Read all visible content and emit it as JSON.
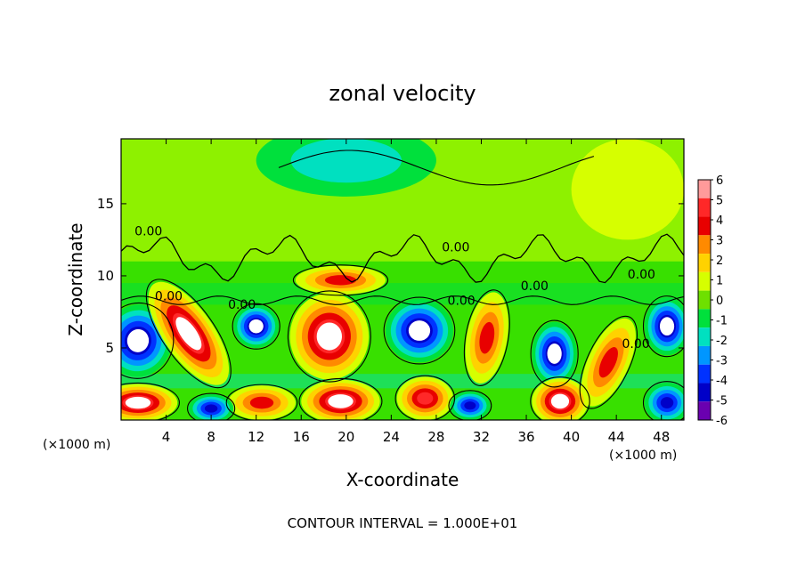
{
  "chart_data": {
    "type": "heatmap",
    "title": "zonal velocity",
    "xlabel": "X-coordinate",
    "ylabel": "Z-coordinate",
    "x_unit_left": "(×1000 m)",
    "x_unit_right": "(×1000 m)",
    "footer": "CONTOUR INTERVAL = 1.000E+01",
    "x_ticks": [
      4,
      8,
      12,
      16,
      20,
      24,
      28,
      32,
      36,
      40,
      44,
      48
    ],
    "y_ticks": [
      5,
      10,
      15
    ],
    "xlim": [
      0,
      50
    ],
    "ylim": [
      0,
      19.5
    ],
    "contour_labels": [
      {
        "text": "0.00",
        "x": 1.2,
        "y": 12.8
      },
      {
        "text": "0.00",
        "x": 3.0,
        "y": 8.3
      },
      {
        "text": "0.00",
        "x": 9.5,
        "y": 7.7
      },
      {
        "text": "0.00",
        "x": 28.5,
        "y": 11.7
      },
      {
        "text": "0.00",
        "x": 29.0,
        "y": 8.0
      },
      {
        "text": "0.00",
        "x": 35.5,
        "y": 9.0
      },
      {
        "text": "0.00",
        "x": 45.0,
        "y": 9.8
      },
      {
        "text": "0.00",
        "x": 44.5,
        "y": 5.0
      }
    ],
    "colorbar": {
      "ticks": [
        6,
        5,
        4,
        3,
        2,
        1,
        0,
        -1,
        -2,
        -3,
        -4,
        -5,
        -6
      ],
      "colors": [
        "#ff9a9a",
        "#ff2828",
        "#e80000",
        "#ff8a00",
        "#ffd200",
        "#d6ff00",
        "#6ee000",
        "#00e03c",
        "#00e0c0",
        "#0096ff",
        "#0032ff",
        "#0000c8",
        "#6a00b0"
      ]
    },
    "blobs": [
      {
        "x": 1.5,
        "y": 5.5,
        "v": -6,
        "rx": 3.0,
        "ry": 2.5,
        "rot": 10
      },
      {
        "x": 6.0,
        "y": 6.0,
        "v": 6,
        "rx": 2.2,
        "ry": 4.2,
        "rot": -35
      },
      {
        "x": 12.0,
        "y": 6.5,
        "v": -6,
        "rx": 2.0,
        "ry": 1.5,
        "rot": 0
      },
      {
        "x": 18.5,
        "y": 5.8,
        "v": 6,
        "rx": 3.5,
        "ry": 3.0,
        "rot": 0
      },
      {
        "x": 19.5,
        "y": 9.7,
        "v": 4,
        "rx": 4.0,
        "ry": 1.0,
        "rot": 0
      },
      {
        "x": 26.5,
        "y": 6.2,
        "v": -6,
        "rx": 3.0,
        "ry": 2.2,
        "rot": 0
      },
      {
        "x": 32.5,
        "y": 5.7,
        "v": 4,
        "rx": 1.8,
        "ry": 3.2,
        "rot": 10
      },
      {
        "x": 38.5,
        "y": 4.6,
        "v": -6,
        "rx": 2.0,
        "ry": 2.2,
        "rot": 0
      },
      {
        "x": 43.3,
        "y": 4.0,
        "v": 4,
        "rx": 1.8,
        "ry": 3.3,
        "rot": 25
      },
      {
        "x": 48.5,
        "y": 6.5,
        "v": -6,
        "rx": 2.0,
        "ry": 2.0,
        "rot": 0
      },
      {
        "x": 1.5,
        "y": 1.2,
        "v": 6,
        "rx": 3.5,
        "ry": 1.3,
        "rot": 0
      },
      {
        "x": 12.5,
        "y": 1.2,
        "v": 4,
        "rx": 3.0,
        "ry": 1.2,
        "rot": 0
      },
      {
        "x": 8.0,
        "y": 0.8,
        "v": -5,
        "rx": 2.0,
        "ry": 1.0,
        "rot": 0
      },
      {
        "x": 19.5,
        "y": 1.3,
        "v": 6,
        "rx": 3.5,
        "ry": 1.5,
        "rot": 0
      },
      {
        "x": 27.0,
        "y": 1.5,
        "v": 5,
        "rx": 2.5,
        "ry": 1.5,
        "rot": 0
      },
      {
        "x": 31.0,
        "y": 1.0,
        "v": -5,
        "rx": 1.8,
        "ry": 1.0,
        "rot": 0
      },
      {
        "x": 39.0,
        "y": 1.3,
        "v": 6,
        "rx": 2.5,
        "ry": 1.6,
        "rot": 0
      },
      {
        "x": 48.5,
        "y": 1.2,
        "v": -5,
        "rx": 2.0,
        "ry": 1.4,
        "rot": 0
      },
      {
        "x": 20.0,
        "y": 18.0,
        "v": -1.5,
        "rx": 8.0,
        "ry": 2.5,
        "rot": 0
      },
      {
        "x": 45.0,
        "y": 16.0,
        "v": 0.8,
        "rx": 5.0,
        "ry": 3.5,
        "rot": 0
      }
    ]
  }
}
